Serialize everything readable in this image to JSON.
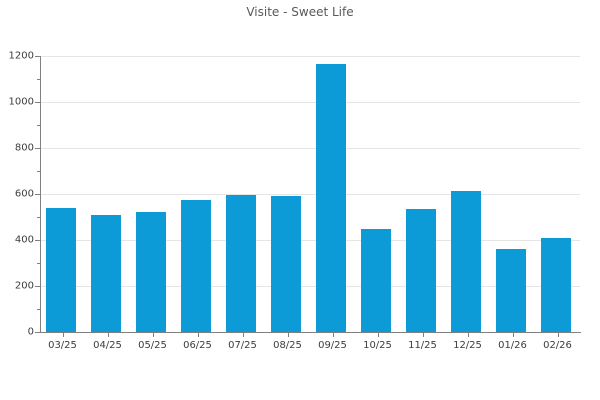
{
  "chart_data": {
    "type": "bar",
    "title": "Visite - Sweet Life",
    "categories": [
      "03/25",
      "04/25",
      "05/25",
      "06/25",
      "07/25",
      "08/25",
      "09/25",
      "10/25",
      "11/25",
      "12/25",
      "01/26",
      "02/26"
    ],
    "values": [
      540,
      510,
      520,
      575,
      595,
      590,
      1165,
      450,
      535,
      615,
      360,
      410
    ],
    "xlabel": "",
    "ylabel": "",
    "ylim": [
      0,
      1200
    ],
    "yticks": [
      0,
      200,
      400,
      600,
      800,
      1000,
      1200
    ],
    "minor_tick_step": 100,
    "grid": "horizontal-major",
    "legend": "none",
    "colors": {
      "bar": "#0c9bd6",
      "grid": "#e5e5e5",
      "axis": "#808080",
      "tick_text": "#3d3d3d",
      "title_text": "#595959",
      "background": "#ffffff"
    }
  }
}
